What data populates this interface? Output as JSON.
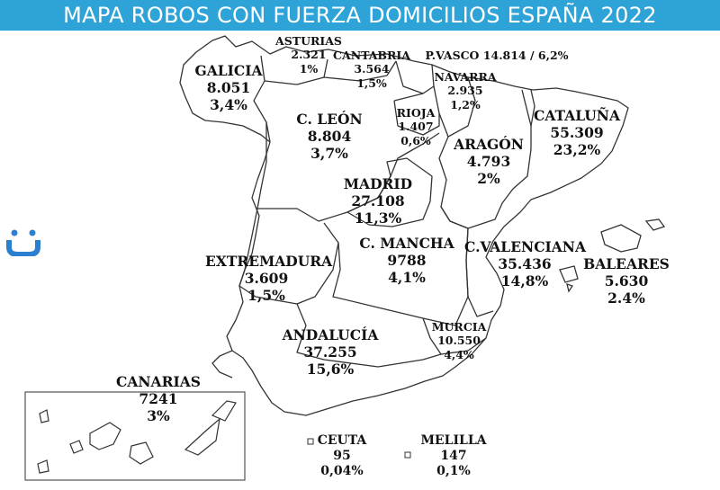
{
  "title": "MAPA ROBOS CON FUERZA DOMICILIOS ESPAÑA 2022",
  "colors": {
    "title_bar": "#2ea3d8",
    "title_text": "#ffffff",
    "outline": "#333333",
    "logo": "#2b7fd1"
  },
  "logo_icon": "brand-logo-icon",
  "regions": {
    "asturias": {
      "name": "ASTURIAS",
      "value": "2.321",
      "pct": "1%"
    },
    "cantabria": {
      "name": "CANTABRIA",
      "value": "3.564",
      "pct": "1,5%"
    },
    "pvasco": {
      "name": "P.VASCO 14.814 / 6,2%"
    },
    "galicia": {
      "name": "GALICIA",
      "value": "8.051",
      "pct": "3,4%"
    },
    "navarra": {
      "name": "NAVARRA",
      "value": "2.935",
      "pct": "1,2%"
    },
    "cataluna": {
      "name": "CATALUÑA",
      "value": "55.309",
      "pct": "23,2%"
    },
    "cleon": {
      "name": "C. LEÓN",
      "value": "8.804",
      "pct": "3,7%"
    },
    "rioja": {
      "name": "RIOJA",
      "value": "1.407",
      "pct": "0,6%"
    },
    "aragon": {
      "name": "ARAGÓN",
      "value": "4.793",
      "pct": "2%"
    },
    "madrid": {
      "name": "MADRID",
      "value": "27.108",
      "pct": "11,3%"
    },
    "cmancha": {
      "name": "C. MANCHA",
      "value": "9788",
      "pct": "4,1%"
    },
    "cvalenciana": {
      "name": "C.VALENCIANA",
      "value": "35.436",
      "pct": "14,8%"
    },
    "extremadura": {
      "name": "EXTREMADURA",
      "value": "3.609",
      "pct": "1,5%"
    },
    "baleares": {
      "name": "BALEARES",
      "value": "5.630",
      "pct": "2.4%"
    },
    "murcia": {
      "name": "MURCIA",
      "value": "10.550",
      "pct": "4,4%"
    },
    "andalucia": {
      "name": "ANDALUCÍA",
      "value": "37.255",
      "pct": "15,6%"
    },
    "canarias": {
      "name": "CANARIAS",
      "value": "7241",
      "pct": "3%"
    },
    "ceuta": {
      "name": "CEUTA",
      "value": "95",
      "pct": "0,04%"
    },
    "melilla": {
      "name": "MELILLA",
      "value": "147",
      "pct": "0,1%"
    }
  }
}
